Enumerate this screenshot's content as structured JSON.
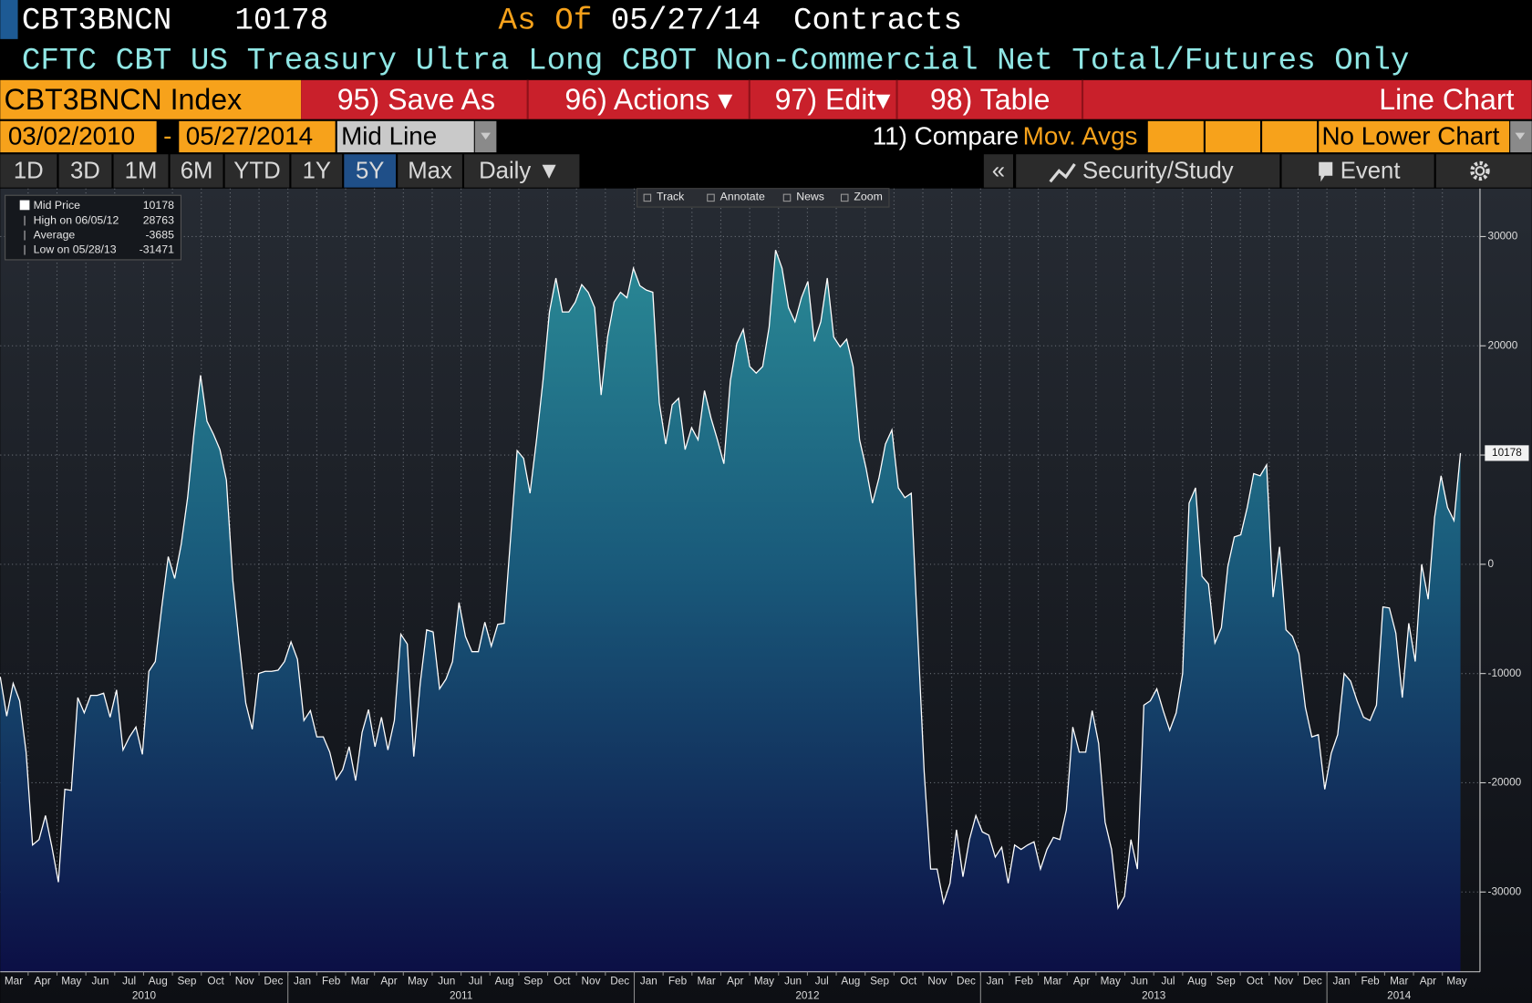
{
  "header": {
    "ticker": "CBT3BNCN",
    "as_of_label": "As Of",
    "as_of_date": "05/27/14",
    "units": "Contracts",
    "subtitle": "CFTC CBT US Treasury Ultra Long CBOT Non-Commercial Net Total/Futures Only"
  },
  "toolbar": {
    "security": "CBT3BNCN Index",
    "buttons": [
      "95) Save As",
      "96) Actions ▾",
      "97) Edit▾",
      "98) Table"
    ],
    "view": "Line Chart"
  },
  "range_bar": {
    "start": "03/02/2010",
    "separator": "-",
    "end": "05/27/2014",
    "mode": "Mid Line",
    "compare": "11) Compare",
    "moving_averages": "Mov. Avgs",
    "lower_chart": "No Lower Chart"
  },
  "periods": {
    "buttons": [
      "1D",
      "3D",
      "1M",
      "6M",
      "YTD",
      "1Y",
      "5Y",
      "Max"
    ],
    "selected": 6,
    "frequency": "Daily ▼",
    "collapse": "«",
    "study": "Security/Study",
    "event": "Event"
  },
  "chart_tools": [
    "Track",
    "Annotate",
    "News",
    "Zoom"
  ],
  "chart_data": {
    "type": "area",
    "series": [
      {
        "name": "Mid Price",
        "color": "#ffffff",
        "values": [
          -10300,
          -13900,
          -10900,
          -12500,
          -17200,
          -25700,
          -25200,
          -23000,
          -25900,
          -29100,
          -20600,
          -20700,
          -12200,
          -13600,
          -12000,
          -12000,
          -11800,
          -14000,
          -11500,
          -17000,
          -15800,
          -14900,
          -17400,
          -9800,
          -8900,
          -3900,
          700,
          -1300,
          1800,
          6100,
          12100,
          17300,
          13100,
          11900,
          10500,
          7700,
          -1500,
          -7300,
          -12700,
          -15100,
          -10000,
          -9800,
          -9800,
          -9700,
          -8900,
          -7100,
          -8700,
          -14300,
          -13400,
          -15800,
          -15800,
          -17200,
          -19700,
          -18800,
          -16700,
          -19800,
          -15400,
          -13300,
          -16700,
          -14000,
          -17000,
          -14300,
          -6400,
          -7300,
          -17600,
          -10900,
          -6000,
          -6200,
          -11400,
          -10500,
          -8900,
          -3500,
          -6600,
          -8000,
          -8000,
          -5300,
          -7500,
          -5500,
          -5400,
          2500,
          10400,
          9700,
          6500,
          11400,
          16800,
          23100,
          26200,
          23100,
          23100,
          24000,
          25600,
          24900,
          23500,
          15500,
          20800,
          24000,
          24900,
          24400,
          27100,
          25500,
          25100,
          24900,
          14800,
          11000,
          14600,
          15200,
          10500,
          12500,
          11400,
          15900,
          13400,
          11400,
          9200,
          16800,
          20200,
          21500,
          18100,
          17500,
          18100,
          21700,
          28763,
          27100,
          23500,
          22200,
          24400,
          25900,
          20400,
          22200,
          26200,
          20800,
          19900,
          20600,
          18100,
          11400,
          8800,
          5600,
          7900,
          11000,
          12300,
          7000,
          6100,
          6500,
          -6400,
          -19000,
          -27900,
          -27900,
          -31000,
          -29200,
          -24300,
          -28600,
          -25200,
          -23000,
          -24500,
          -24800,
          -26800,
          -25900,
          -29200,
          -25700,
          -26100,
          -25700,
          -25400,
          -27900,
          -26100,
          -25000,
          -25200,
          -22500,
          -14900,
          -17200,
          -17200,
          -13400,
          -16400,
          -23600,
          -26100,
          -31471,
          -30400,
          -25200,
          -27900,
          -12900,
          -12500,
          -11400,
          -13400,
          -15200,
          -13600,
          -10000,
          5600,
          7000,
          -1100,
          -1800,
          -7200,
          -5800,
          -200,
          2500,
          2700,
          5200,
          8300,
          8100,
          9100,
          -3000,
          1600,
          -6000,
          -6600,
          -8200,
          -13100,
          -15800,
          -15600,
          -20600,
          -17300,
          -15600,
          -10000,
          -10700,
          -12500,
          -14000,
          -14300,
          -12900,
          -3900,
          -4000,
          -6300,
          -12200,
          -5400,
          -8900,
          0,
          -3200,
          4300,
          8100,
          5200,
          4000,
          10178
        ]
      }
    ],
    "stats": [
      {
        "label": "High on 06/05/12",
        "value": 28763
      },
      {
        "label": "Average",
        "value": -3685
      },
      {
        "label": "Low on 05/28/13",
        "value": -31471
      }
    ],
    "ylim": [
      -37300,
      34400
    ],
    "yticks": [
      -30000,
      -20000,
      -10000,
      0,
      10000,
      20000,
      30000
    ],
    "months": [
      "Mar",
      "Apr",
      "May",
      "Jun",
      "Jul",
      "Aug",
      "Sep",
      "Oct",
      "Nov",
      "Dec",
      "Jan",
      "Feb",
      "Mar",
      "Apr",
      "May",
      "Jun",
      "Jul",
      "Aug",
      "Sep",
      "Oct",
      "Nov",
      "Dec",
      "Jan",
      "Feb",
      "Mar",
      "Apr",
      "May",
      "Jun",
      "Jul",
      "Aug",
      "Sep",
      "Oct",
      "Nov",
      "Dec",
      "Jan",
      "Feb",
      "Mar",
      "Apr",
      "May",
      "Jun",
      "Jul",
      "Aug",
      "Sep",
      "Oct",
      "Nov",
      "Dec",
      "Jan",
      "Feb",
      "Mar",
      "Apr",
      "May"
    ],
    "years": [
      "2010",
      "2011",
      "2012",
      "2013",
      "2014"
    ],
    "grid": true
  }
}
